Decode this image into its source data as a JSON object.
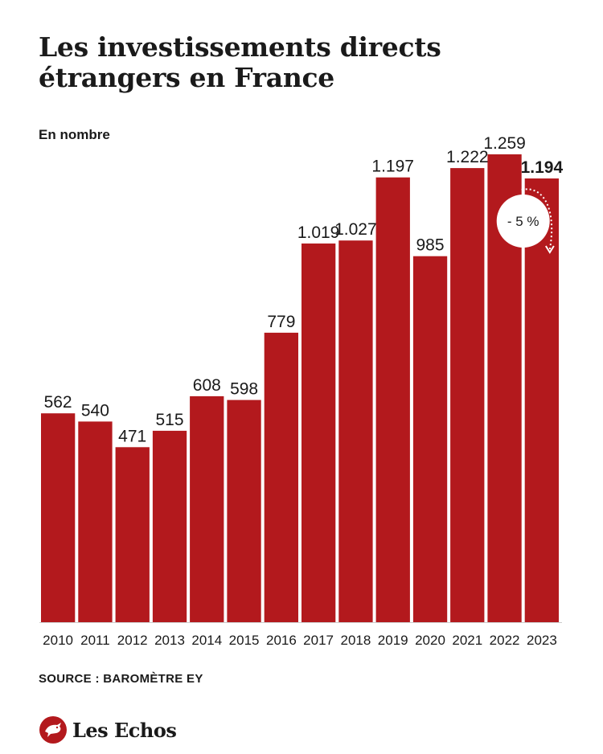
{
  "header": {
    "title": "Les investissements directs étrangers en France",
    "subtitle": "En nombre"
  },
  "chart_data": {
    "type": "bar",
    "categories": [
      "2010",
      "2011",
      "2012",
      "2013",
      "2014",
      "2015",
      "2016",
      "2017",
      "2018",
      "2019",
      "2020",
      "2021",
      "2022",
      "2023"
    ],
    "values": [
      562,
      540,
      471,
      515,
      608,
      598,
      779,
      1019,
      1027,
      1197,
      985,
      1222,
      1259,
      1194
    ],
    "value_labels": [
      "562",
      "540",
      "471",
      "515",
      "608",
      "598",
      "779",
      "1.019",
      "1.027",
      "1.197",
      "985",
      "1.222",
      "1.259",
      "1.194"
    ],
    "highlight_index": 13,
    "annotation": {
      "text": "- 5 %",
      "from_index": 12,
      "to_index": 13
    },
    "ylim": [
      0,
      1259
    ],
    "grid": false,
    "bar_color": "#b3191d"
  },
  "footer": {
    "source": "SOURCE : BAROMÈTRE EY",
    "logo_text": "Les Echos"
  },
  "colors": {
    "accent": "#b3191d",
    "text": "#1a1a1a"
  }
}
